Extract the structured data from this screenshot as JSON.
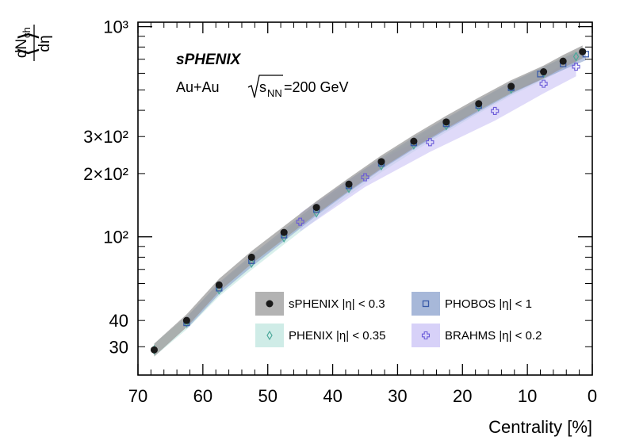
{
  "chart_data": {
    "type": "scatter",
    "title": "",
    "annotation_brand": "sPHENIX",
    "annotation_system": "Au+Au",
    "annotation_energy_prefix": "s",
    "annotation_energy_sub": "NN",
    "annotation_energy_value": "=200 GeV",
    "xlabel": "Centrality [%]",
    "ylabel": "⟨dN_ch/dη⟩",
    "ylabel_num_main": "dN",
    "ylabel_num_sub": "ch",
    "ylabel_den": "dη",
    "xlim": [
      70,
      0
    ],
    "ylim": [
      22,
      1050
    ],
    "log_y": true,
    "grid": false,
    "x_ticks": [
      70,
      60,
      50,
      40,
      30,
      20,
      10,
      0
    ],
    "x_tick_labels": [
      "70",
      "60",
      "50",
      "40",
      "30",
      "20",
      "10",
      "0"
    ],
    "y_ticks": [
      30,
      40,
      100,
      200,
      300,
      1000
    ],
    "y_tick_labels": [
      "30",
      "40",
      "10²",
      "2×10²",
      "3×10²",
      "10³"
    ],
    "legend_placement": "lower-right",
    "series": [
      {
        "name": "sPHENIX |η| < 0.3",
        "marker": "circle",
        "color": "#1a1a1a",
        "band_color": "#9a9a9a",
        "x": [
          67.5,
          62.5,
          57.5,
          52.5,
          47.5,
          42.5,
          37.5,
          32.5,
          27.5,
          22.5,
          17.5,
          12.5,
          7.5,
          4.5,
          1.5
        ],
        "y": [
          29,
          40,
          59,
          80,
          105,
          138,
          178,
          228,
          285,
          352,
          430,
          520,
          610,
          685,
          760
        ]
      },
      {
        "name": "PHOBOS |η| < 1",
        "marker": "square",
        "color": "#3a5ba8",
        "band_color": "#8aa0cc",
        "x": [
          62.5,
          57.5,
          52.5,
          47.5,
          42.5,
          37.5,
          32.5,
          27.5,
          22.5,
          17.5,
          12.5,
          8.0,
          4.5,
          1.0
        ],
        "y": [
          39,
          57,
          77,
          102,
          135,
          175,
          224,
          280,
          345,
          422,
          512,
          595,
          665,
          740
        ]
      },
      {
        "name": "PHENIX |η| < 0.35",
        "marker": "diamond",
        "color": "#4aa89a",
        "band_color": "#bfe6df",
        "x": [
          67.5,
          62.5,
          57.5,
          52.5,
          47.5,
          42.5,
          37.5,
          32.5,
          27.5,
          22.5,
          17.5,
          12.5,
          7.5,
          2.5
        ],
        "y": [
          29,
          39,
          56,
          75,
          99,
          130,
          170,
          218,
          274,
          338,
          416,
          505,
          600,
          720
        ]
      },
      {
        "name": "BRAHMS |η| < 0.2",
        "marker": "cross",
        "color": "#6a5ad8",
        "band_color": "#c9c2f5",
        "x": [
          45,
          35,
          25,
          15,
          7.5,
          2.5
        ],
        "y": [
          118,
          192,
          282,
          397,
          535,
          645
        ]
      }
    ]
  }
}
